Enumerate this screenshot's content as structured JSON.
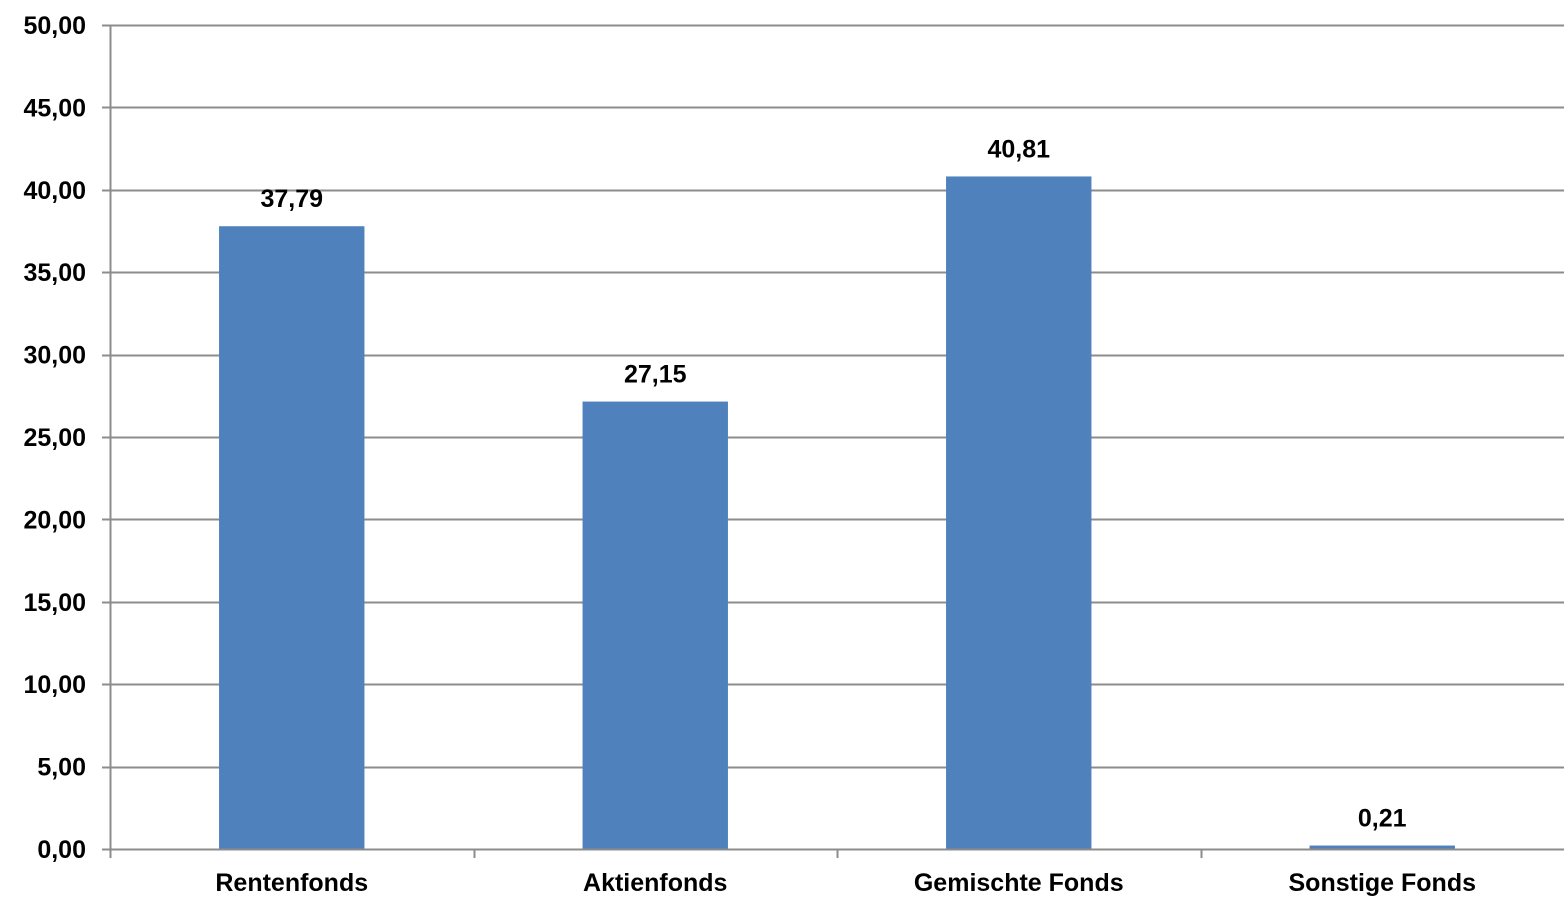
{
  "chart_data": {
    "type": "bar",
    "title": "",
    "xlabel": "",
    "ylabel": "",
    "categories": [
      "Rentenfonds",
      "Aktienfonds",
      "Gemischte Fonds",
      "Sonstige Fonds"
    ],
    "values": [
      37.79,
      27.15,
      40.81,
      0.21
    ],
    "value_labels": [
      "37,79",
      "27,15",
      "40,81",
      "0,21"
    ],
    "ylim": [
      0,
      50
    ],
    "yticks": [
      0,
      5,
      10,
      15,
      20,
      25,
      30,
      35,
      40,
      45,
      50
    ],
    "ytick_labels": [
      "0,00",
      "5,00",
      "10,00",
      "15,00",
      "20,00",
      "25,00",
      "30,00",
      "35,00",
      "40,00",
      "45,00",
      "50,00"
    ],
    "grid": true,
    "legend": "none",
    "bar_color": "#4F81BD",
    "grid_color": "#8C8C8C"
  }
}
